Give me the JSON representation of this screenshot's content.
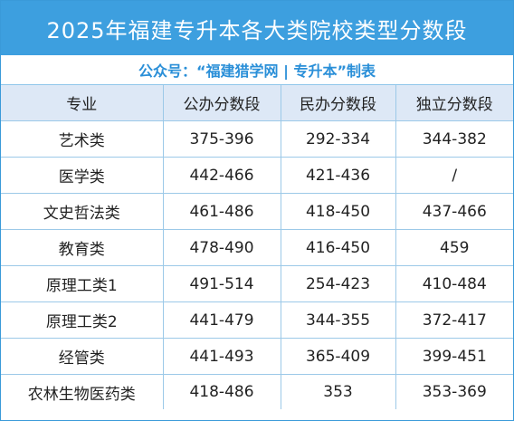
{
  "title": "2025年福建专升本各大类院校类型分数段",
  "subtitle": "公众号：“福建猎学网 | 专升本”制表",
  "headers": [
    "专业",
    "公办分数段",
    "民办分数段",
    "独立分数段"
  ],
  "rows": [
    [
      "艺术类",
      "375-396",
      "292-334",
      "344-382"
    ],
    [
      "医学类",
      "442-466",
      "421-436",
      "/"
    ],
    [
      "文史哲法类",
      "461-486",
      "418-450",
      "437-466"
    ],
    [
      "教育类",
      "478-490",
      "416-450",
      "459"
    ],
    [
      "原理工类1",
      "491-514",
      "254-423",
      "410-484"
    ],
    [
      "原理工类2",
      "441-479",
      "344-355",
      "372-417"
    ],
    [
      "经管类",
      "441-493",
      "365-409",
      "399-451"
    ],
    [
      "农林生物医药类",
      "418-486",
      "353",
      "353-369"
    ]
  ],
  "colors": {
    "title_bg": "#3d9fdf",
    "subtitle_text": "#2a8fd8",
    "header_bg": "#dde8f6",
    "grid_line": "#9cc9e8"
  }
}
